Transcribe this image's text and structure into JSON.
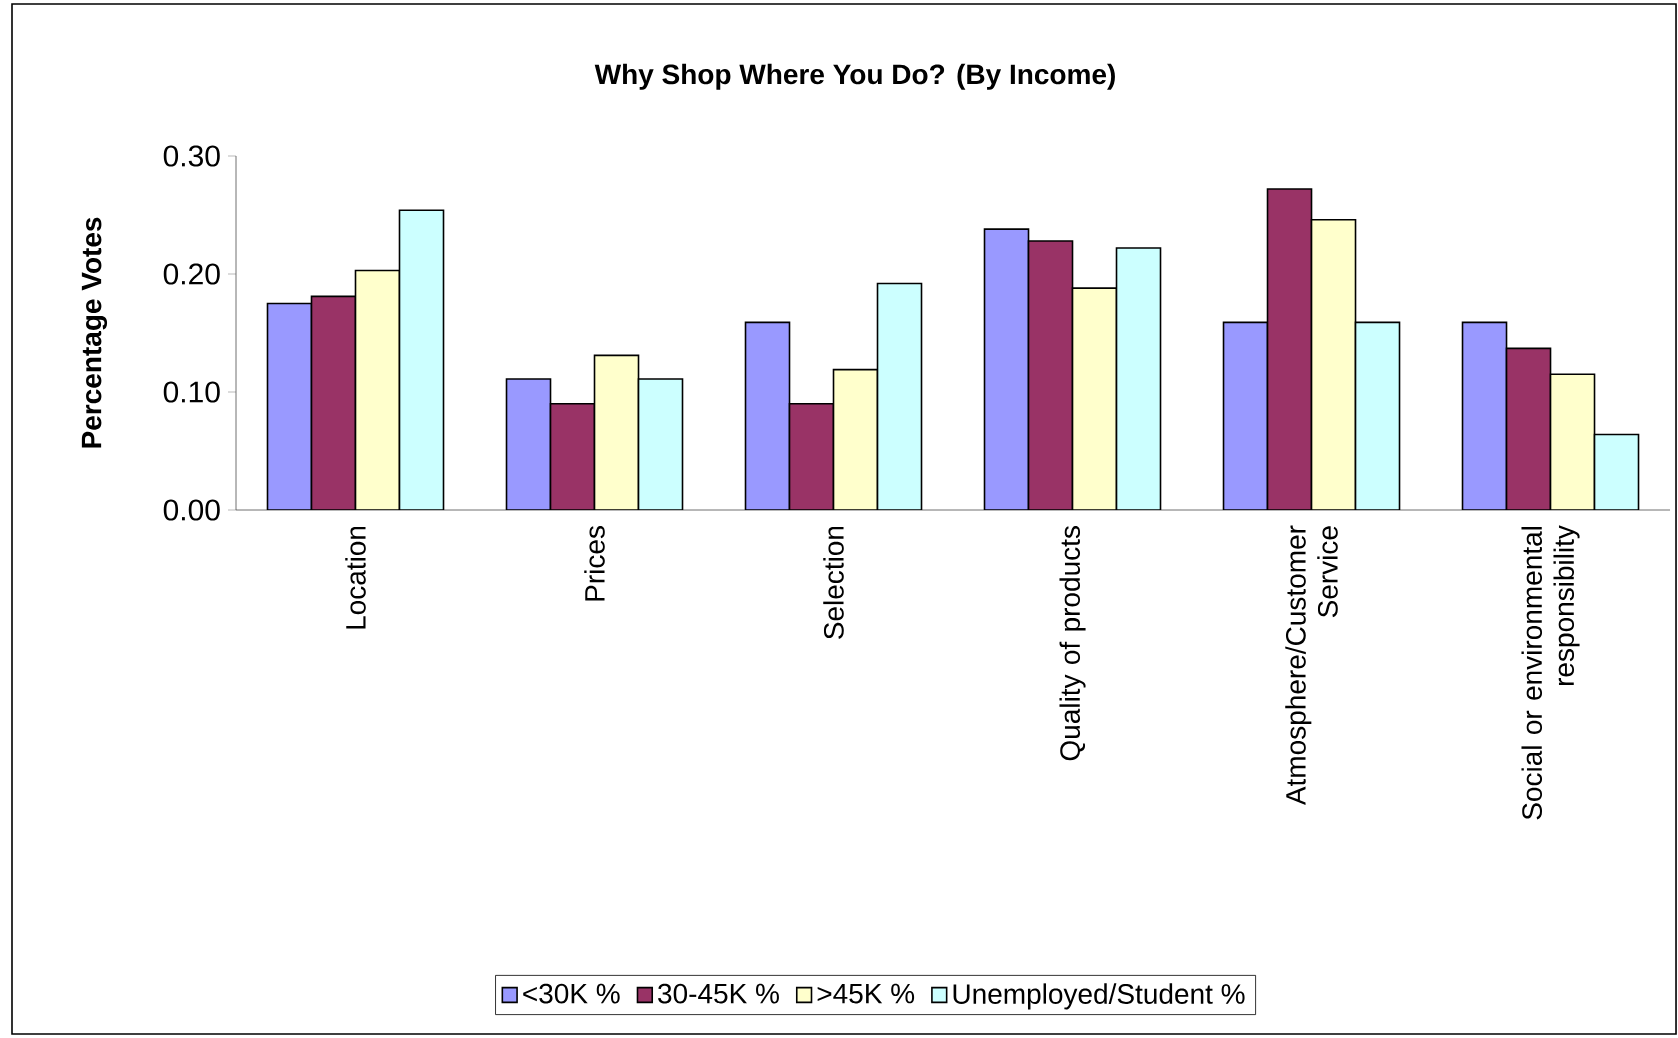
{
  "chart_data": {
    "type": "bar",
    "title": "Why Shop Where You Do? (By Income)",
    "ylabel": "Percentage Votes",
    "categories": [
      "Location",
      "Prices",
      "Selection",
      "Quality of products",
      "Atmosphere/Customer Service",
      "Social or environmental responsibility"
    ],
    "series": [
      {
        "name": "<30K %",
        "color": "#9999ff",
        "values": [
          0.175,
          0.111,
          0.159,
          0.238,
          0.159,
          0.159
        ]
      },
      {
        "name": "30-45K %",
        "color": "#993366",
        "values": [
          0.181,
          0.09,
          0.09,
          0.228,
          0.272,
          0.137
        ]
      },
      {
        "name": ">45K %",
        "color": "#ffffcc",
        "values": [
          0.203,
          0.131,
          0.119,
          0.188,
          0.246,
          0.115
        ]
      },
      {
        "name": "Unemployed/Student %",
        "color": "#ccffff",
        "values": [
          0.254,
          0.111,
          0.192,
          0.222,
          0.159,
          0.064
        ]
      }
    ],
    "ylim": [
      0,
      0.3
    ],
    "yticks": [
      {
        "value": 0,
        "label": "0.00"
      },
      {
        "value": 0.1,
        "label": "0.10"
      },
      {
        "value": 0.2,
        "label": "0.20"
      },
      {
        "value": 0.3,
        "label": "0.30"
      }
    ],
    "grid": false,
    "legend": "bottom"
  }
}
